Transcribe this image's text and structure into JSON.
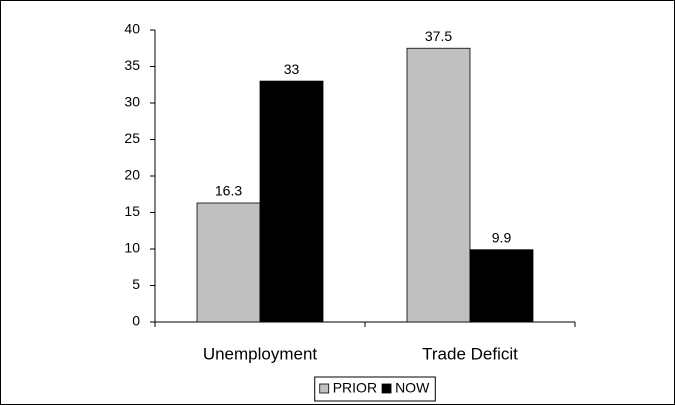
{
  "chart_data": {
    "type": "bar",
    "categories": [
      "Unemployment",
      "Trade Deficit"
    ],
    "series": [
      {
        "name": "PRIOR",
        "color": "#c0c0c0",
        "values": [
          16.3,
          37.5
        ]
      },
      {
        "name": "NOW",
        "color": "#000000",
        "values": [
          33,
          9.9
        ]
      }
    ],
    "ylim": [
      0,
      40
    ],
    "yticks": [
      0,
      5,
      10,
      15,
      20,
      25,
      30,
      35,
      40
    ],
    "grid": false,
    "legend": "bottom",
    "data_labels": true
  }
}
